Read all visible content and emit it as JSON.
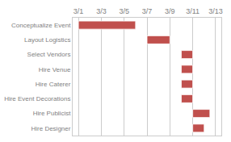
{
  "chart_data": {
    "type": "bar",
    "orientation": "horizontal",
    "categories": [
      "Conceptualize Event",
      "Layout Logistics",
      "Select Vendors",
      "Hire Venue",
      "Hire Caterer",
      "Hire Event Decorations",
      "Hire Publicist",
      "Hire Designer"
    ],
    "starts": [
      1,
      7,
      10,
      10,
      10,
      10,
      11,
      11
    ],
    "values": [
      5,
      2,
      1,
      1,
      1,
      1,
      1.5,
      1
    ],
    "color": "#c0504d",
    "xlim": [
      0.5,
      13.5
    ],
    "xticks": [
      {
        "value": 1,
        "label": "3/1"
      },
      {
        "value": 3,
        "label": "3/3"
      },
      {
        "value": 5,
        "label": "3/5"
      },
      {
        "value": 7,
        "label": "3/7"
      },
      {
        "value": 9,
        "label": "3/9"
      },
      {
        "value": 11,
        "label": "3/11"
      },
      {
        "value": 13,
        "label": "3/13"
      }
    ],
    "grid": true
  }
}
